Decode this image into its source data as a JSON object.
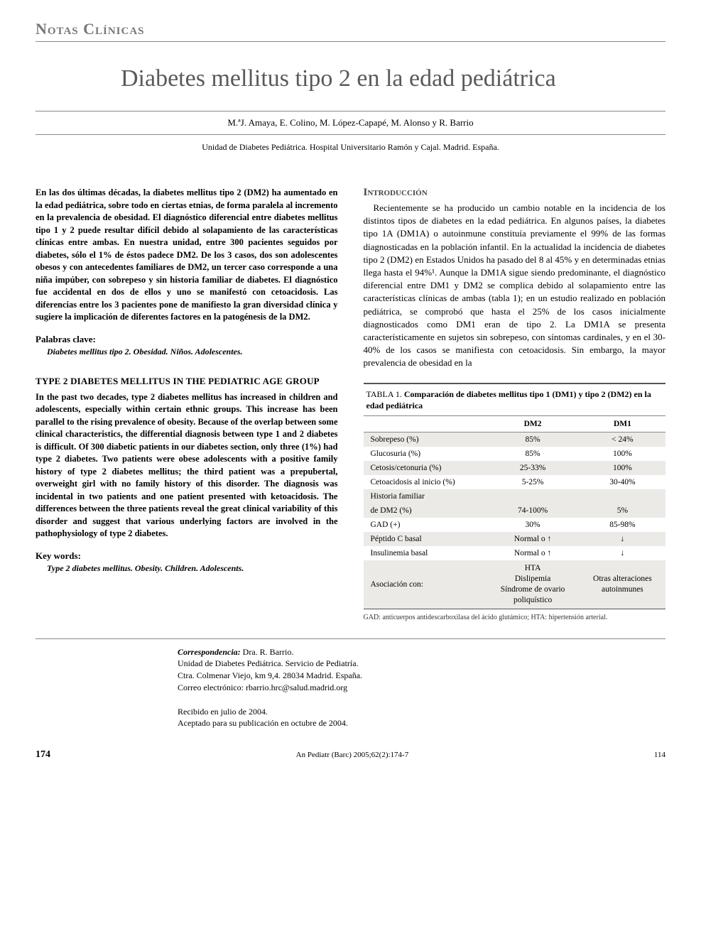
{
  "section_header": "Notas Clínicas",
  "title": "Diabetes mellitus tipo 2 en la edad pediátrica",
  "authors": "M.ªJ. Amaya, E. Colino, M. López-Capapé, M. Alonso y R. Barrio",
  "affiliation": "Unidad de Diabetes Pediátrica. Hospital Universitario Ramón y Cajal. Madrid. España.",
  "abstract_es": "En las dos últimas décadas, la diabetes mellitus tipo 2 (DM2) ha aumentado en la edad pediátrica, sobre todo en ciertas etnias, de forma paralela al incremento en la prevalencia de obesidad. El diagnóstico diferencial entre diabetes mellitus tipo 1 y 2 puede resultar difícil debido al solapamiento de las características clínicas entre ambas. En nuestra unidad, entre 300 pacientes seguidos por diabetes, sólo el 1% de éstos padece DM2. De los 3 casos, dos son adolescentes obesos y con antecedentes familiares de DM2, un tercer caso corresponde a una niña impúber, con sobrepeso y sin historia familiar de diabetes. El diagnóstico fue accidental en dos de ellos y uno se manifestó con cetoacidosis. Las diferencias entre los 3 pacientes pone de manifiesto la gran diversidad clínica y sugiere la implicación de diferentes factores en la patogénesis de la DM2.",
  "kw_es_heading": "Palabras clave:",
  "kw_es": "Diabetes mellitus tipo 2. Obesidad. Niños. Adolescentes.",
  "en_title": "TYPE 2 DIABETES MELLITUS IN THE PEDIATRIC AGE GROUP",
  "abstract_en": "In the past two decades, type 2 diabetes mellitus has increased in children and adolescents, especially within certain ethnic groups. This increase has been parallel to the rising prevalence of obesity. Because of the overlap between some clinical characteristics, the differential diagnosis between type 1 and 2 diabetes is difficult. Of 300 diabetic patients in our diabetes section, only three (1%) had type 2 diabetes. Two patients were obese adolescents with a positive family history of type 2 diabetes mellitus; the third patient was a prepubertal, overweight girl with no family history of this disorder. The diagnosis was incidental in two patients and one patient presented with ketoacidosis. The differences between the three patients reveal the great clinical variability of this disorder and suggest that various underlying factors are involved in the pathophysiology of type 2 diabetes.",
  "kw_en_heading": "Key words:",
  "kw_en": "Type 2 diabetes mellitus. Obesity. Children. Adolescents.",
  "intro_heading": "Introducción",
  "intro_body": "Recientemente se ha producido un cambio notable en la incidencia de los distintos tipos de diabetes en la edad pediátrica. En algunos países, la diabetes tipo 1A (DM1A) o autoinmune constituía previamente el 99% de las formas diagnosticadas en la población infantil. En la actualidad la incidencia de diabetes tipo 2 (DM2) en Estados Unidos ha pasado del 8 al 45% y en determinadas etnias llega hasta el 94%¹. Aunque la DM1A sigue siendo predominante, el diagnóstico diferencial entre DM1 y DM2 se complica debido al solapamiento entre las características clínicas de ambas (tabla 1); en un estudio realizado en población pediátrica, se comprobó que hasta el 25% de los casos inicialmente diagnosticados como DM1 eran de tipo 2. La DM1A se presenta característicamente en sujetos sin sobrepeso, con síntomas cardinales, y en el 30-40% de los casos se manifiesta con cetoacidosis. Sin embargo, la mayor prevalencia de obesidad en la",
  "table": {
    "label": "TABLA 1.",
    "title": "Comparación de diabetes mellitus tipo 1 (DM1) y tipo 2 (DM2) en la edad pediátrica",
    "headers": [
      "",
      "DM2",
      "DM1"
    ],
    "rows": [
      {
        "cells": [
          "Sobrepeso (%)",
          "85%",
          "< 24%"
        ],
        "shade": true
      },
      {
        "cells": [
          "Glucosuria (%)",
          "85%",
          "100%"
        ],
        "shade": false
      },
      {
        "cells": [
          "Cetosis/cetonuria (%)",
          "25-33%",
          "100%"
        ],
        "shade": true
      },
      {
        "cells": [
          "Cetoacidosis al inicio (%)",
          "5-25%",
          "30-40%"
        ],
        "shade": false
      },
      {
        "cells": [
          "Historia familiar",
          "",
          ""
        ],
        "shade": true
      },
      {
        "cells": [
          "de DM2 (%)",
          "74-100%",
          "5%"
        ],
        "shade": true,
        "sub": true
      },
      {
        "cells": [
          "GAD (+)",
          "30%",
          "85-98%"
        ],
        "shade": false
      },
      {
        "cells": [
          "Péptido C basal",
          "Normal o ↑",
          "↓"
        ],
        "shade": true
      },
      {
        "cells": [
          "Insulinemia basal",
          "Normal o ↑",
          "↓"
        ],
        "shade": false
      },
      {
        "cells": [
          "Asociación con:",
          "HTA\nDislipemia\nSíndrome de ovario\npoliquístico",
          "Otras alteraciones\nautoinmunes"
        ],
        "shade": true,
        "multi": true
      }
    ],
    "note": "GAD: anticuerpos antidescarboxilasa del ácido glutámico; HTA: hipertensión arterial."
  },
  "correspondence": {
    "label": "Correspondencia:",
    "name": "Dra. R. Barrio.",
    "lines": [
      "Unidad de Diabetes Pediátrica. Servicio de Pediatría.",
      "Ctra. Colmenar Viejo, km 9,4. 28034 Madrid. España.",
      "Correo electrónico: rbarrio.hrc@salud.madrid.org",
      "",
      "Recibido en julio de 2004.",
      "Aceptado para su publicación en octubre de 2004."
    ]
  },
  "footer": {
    "page_left": "174",
    "citation": "An Pediatr (Barc) 2005;62(2):174-7",
    "page_right": "114"
  },
  "colors": {
    "section_header": "#777777",
    "title": "#5a5a5a",
    "rule": "#888888",
    "shade_bg": "#eceae6"
  }
}
